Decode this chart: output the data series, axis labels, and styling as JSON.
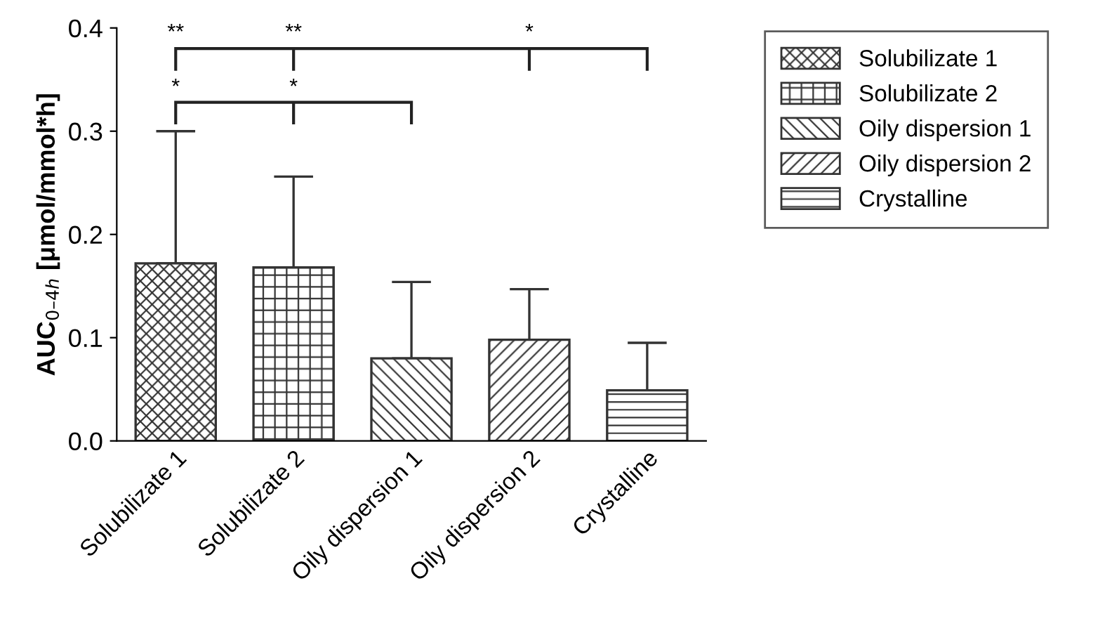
{
  "chart_data": {
    "type": "bar",
    "ylabel": "AUC$_{0–4h}$ [μmol/mmol*h]",
    "categories": [
      "Solubilizate 1",
      "Solubilizate 2",
      "Oily dispersion 1",
      "Oily dispersion 2",
      "Crystalline"
    ],
    "series": [
      {
        "name": "Solubilizate 1",
        "color": "#333333",
        "values": [
          0.172,
          null,
          null,
          null,
          null
        ],
        "errors": [
          [
            0.172,
            0.3
          ],
          null,
          null,
          null,
          null
        ]
      },
      {
        "name": "Solubilizate 2",
        "color": "#333333",
        "values": [
          null,
          0.168,
          null,
          null,
          null
        ],
        "errors": [
          null,
          [
            0.168,
            0.256
          ],
          null,
          null,
          null
        ]
      },
      {
        "name": "Oily dispersion 1",
        "color": "#333333",
        "values": [
          null,
          null,
          0.08,
          null,
          null
        ],
        "errors": [
          null,
          null,
          [
            0.08,
            0.154
          ],
          null,
          null
        ]
      },
      {
        "name": "Oily dispersion 2",
        "color": "#333333",
        "values": [
          null,
          null,
          null,
          0.098,
          null
        ],
        "errors": [
          null,
          null,
          null,
          [
            0.098,
            0.147
          ],
          null
        ]
      },
      {
        "name": "Crystalline",
        "color": "#333333",
        "values": [
          null,
          null,
          null,
          null,
          0.049
        ],
        "errors": [
          null,
          null,
          null,
          null,
          [
            0.049,
            0.095
          ]
        ]
      }
    ],
    "ylim": [
      0,
      0.4
    ],
    "yticks": [
      {
        "value": 0,
        "label": "0.0"
      },
      0.1,
      0.2,
      0.3,
      0.4
    ],
    "grid": false,
    "legend": "right",
    "annotations": [
      "**",
      "**",
      "*",
      "*",
      "*"
    ]
  }
}
